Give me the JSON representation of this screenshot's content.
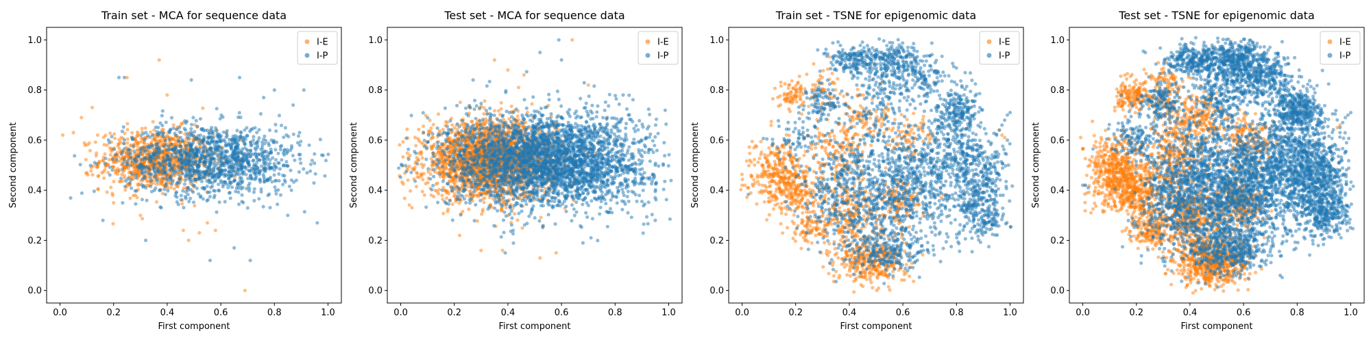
{
  "colors": {
    "ie": "#ff7f0e",
    "ip": "#1f77b4",
    "axis": "#000000"
  },
  "chart_data": [
    {
      "type": "scatter",
      "title": "Train set - MCA for sequence data",
      "xlabel": "First component",
      "ylabel": "Second component",
      "xlim": [
        -0.05,
        1.05
      ],
      "ylim": [
        -0.05,
        1.05
      ],
      "xticks": [
        "0.0",
        "0.2",
        "0.4",
        "0.6",
        "0.8",
        "1.0"
      ],
      "yticks": [
        "0.0",
        "0.2",
        "0.4",
        "0.6",
        "0.8",
        "1.0"
      ],
      "legend_position": "top-right",
      "series": [
        {
          "name": "I-E",
          "color": "#ff7f0e",
          "cloud": {
            "n": 900,
            "shape": "ellipse",
            "cx": 0.36,
            "cy": 0.52,
            "rx": 0.19,
            "ry": 0.11
          },
          "outliers": [
            [
              0.01,
              0.62
            ],
            [
              0.05,
              0.63
            ],
            [
              0.08,
              0.69
            ],
            [
              0.12,
              0.73
            ],
            [
              0.25,
              0.85
            ],
            [
              0.37,
              0.92
            ],
            [
              0.4,
              0.78
            ],
            [
              0.48,
              0.2
            ],
            [
              0.46,
              0.24
            ],
            [
              0.52,
              0.23
            ],
            [
              0.55,
              0.27
            ],
            [
              0.69,
              0.0
            ],
            [
              0.58,
              0.24
            ],
            [
              0.62,
              0.63
            ],
            [
              0.3,
              0.3
            ],
            [
              0.2,
              0.35
            ]
          ]
        },
        {
          "name": "I-P",
          "color": "#1f77b4",
          "cloud": {
            "n": 1300,
            "shape": "ellipse",
            "cx": 0.57,
            "cy": 0.52,
            "rx": 0.3,
            "ry": 0.13
          },
          "outliers": [
            [
              0.22,
              0.85
            ],
            [
              0.24,
              0.85
            ],
            [
              0.49,
              0.84
            ],
            [
              0.56,
              0.12
            ],
            [
              0.67,
              0.85
            ],
            [
              0.8,
              0.8
            ],
            [
              0.91,
              0.8
            ],
            [
              0.93,
              0.58
            ],
            [
              0.96,
              0.27
            ],
            [
              0.71,
              0.12
            ],
            [
              0.65,
              0.17
            ],
            [
              0.32,
              0.2
            ],
            [
              0.16,
              0.28
            ],
            [
              0.85,
              0.3
            ],
            [
              0.87,
              0.74
            ],
            [
              0.76,
              0.77
            ]
          ]
        }
      ]
    },
    {
      "type": "scatter",
      "title": "Test set - MCA for sequence data",
      "xlabel": "First component",
      "ylabel": "Second component",
      "xlim": [
        -0.05,
        1.05
      ],
      "ylim": [
        -0.05,
        1.05
      ],
      "xticks": [
        "0.0",
        "0.2",
        "0.4",
        "0.6",
        "0.8",
        "1.0"
      ],
      "yticks": [
        "0.0",
        "0.2",
        "0.4",
        "0.6",
        "0.8",
        "1.0"
      ],
      "legend_position": "top-right",
      "series": [
        {
          "name": "I-E",
          "color": "#ff7f0e",
          "cloud": {
            "n": 2200,
            "shape": "ellipse",
            "cx": 0.33,
            "cy": 0.52,
            "rx": 0.22,
            "ry": 0.14
          },
          "outliers": [
            [
              0.35,
              0.92
            ],
            [
              0.4,
              0.88
            ],
            [
              0.44,
              0.81
            ],
            [
              0.64,
              1.0
            ],
            [
              0.3,
              0.16
            ],
            [
              0.38,
              0.16
            ],
            [
              0.52,
              0.13
            ],
            [
              0.58,
              0.15
            ],
            [
              0.06,
              0.53
            ],
            [
              0.7,
              0.82
            ],
            [
              0.22,
              0.22
            ],
            [
              0.46,
              0.86
            ]
          ]
        },
        {
          "name": "I-P",
          "color": "#1f77b4",
          "cloud": {
            "n": 3200,
            "shape": "ellipse",
            "cx": 0.55,
            "cy": 0.52,
            "rx": 0.34,
            "ry": 0.17
          },
          "outliers": [
            [
              0.52,
              0.95
            ],
            [
              0.59,
              1.0
            ],
            [
              0.6,
              0.92
            ],
            [
              0.85,
              0.7
            ],
            [
              0.91,
              0.58
            ],
            [
              0.95,
              0.5
            ],
            [
              0.98,
              0.5
            ],
            [
              0.95,
              0.28
            ],
            [
              0.68,
              0.19
            ],
            [
              0.71,
              0.21
            ],
            [
              0.39,
              0.15
            ],
            [
              0.27,
              0.84
            ],
            [
              0.83,
              0.78
            ],
            [
              0.42,
              0.24
            ]
          ]
        }
      ]
    },
    {
      "type": "scatter",
      "title": "Train set - TSNE for epigenomic data",
      "xlabel": "First component",
      "ylabel": "Second component",
      "xlim": [
        -0.05,
        1.05
      ],
      "ylim": [
        -0.05,
        1.05
      ],
      "xticks": [
        "0.0",
        "0.2",
        "0.4",
        "0.6",
        "0.8",
        "1.0"
      ],
      "yticks": [
        "0.0",
        "0.2",
        "0.4",
        "0.6",
        "0.8",
        "1.0"
      ],
      "legend_position": "top-right",
      "series": [
        {
          "name": "I-E",
          "color": "#ff7f0e",
          "cloud": {
            "n": 1600,
            "shape": "tsne_ie"
          },
          "outliers": [
            [
              0.01,
              0.42
            ],
            [
              0.02,
              0.41
            ],
            [
              0.0,
              0.42
            ],
            [
              0.97,
              0.62
            ],
            [
              0.98,
              0.61
            ],
            [
              0.96,
              0.64
            ]
          ]
        },
        {
          "name": "I-P",
          "color": "#1f77b4",
          "cloud": {
            "n": 3000,
            "shape": "tsne_ip"
          },
          "outliers": [
            [
              0.97,
              0.66
            ],
            [
              0.98,
              0.68
            ],
            [
              0.99,
              0.7
            ],
            [
              1.0,
              0.71
            ],
            [
              0.96,
              0.64
            ],
            [
              0.95,
              0.62
            ]
          ]
        }
      ]
    },
    {
      "type": "scatter",
      "title": "Test set - TSNE for epigenomic data",
      "xlabel": "First component",
      "ylabel": "Second component",
      "xlim": [
        -0.05,
        1.05
      ],
      "ylim": [
        -0.05,
        1.05
      ],
      "xticks": [
        "0.0",
        "0.2",
        "0.4",
        "0.6",
        "0.8",
        "1.0"
      ],
      "yticks": [
        "0.0",
        "0.2",
        "0.4",
        "0.6",
        "0.8",
        "1.0"
      ],
      "legend_position": "top-right",
      "series": [
        {
          "name": "I-E",
          "color": "#ff7f0e",
          "cloud": {
            "n": 3200,
            "shape": "tsne_ie"
          },
          "outliers": [
            [
              0.04,
              0.48
            ],
            [
              0.05,
              0.47
            ],
            [
              0.06,
              0.45
            ],
            [
              0.12,
              0.34
            ],
            [
              0.95,
              0.65
            ],
            [
              0.96,
              0.66
            ]
          ]
        },
        {
          "name": "I-P",
          "color": "#1f77b4",
          "cloud": {
            "n": 6000,
            "shape": "tsne_ip"
          },
          "outliers": [
            [
              0.0,
              0.42
            ],
            [
              0.01,
              0.42
            ],
            [
              0.02,
              0.41
            ],
            [
              0.97,
              0.67
            ],
            [
              0.98,
              0.69
            ],
            [
              0.99,
              0.7
            ],
            [
              1.0,
              0.71
            ],
            [
              0.96,
              0.65
            ]
          ]
        }
      ]
    }
  ]
}
